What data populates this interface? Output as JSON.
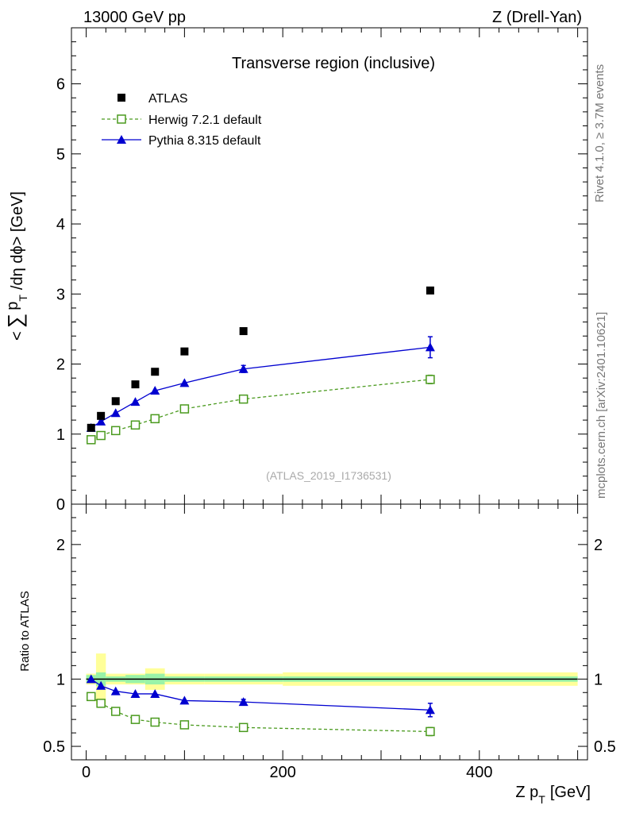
{
  "header": {
    "left": "13000 GeV pp",
    "right": "Z (Drell-Yan)"
  },
  "side_labels": {
    "rivet": "Rivet 4.1.0, ≥ 3.7M events",
    "mcplots": "mcplots.cern.ch [arXiv:2401.10621]"
  },
  "chart_data": [
    {
      "type": "scatter",
      "title": "Transverse region (inclusive)",
      "watermark": "(ATLAS_2019_I1736531)",
      "ylabel": "<∑ p_T /dη dϕ> [GeV]",
      "ylabel_parts": {
        "open": "<",
        "sum": "∑",
        "p": "p",
        "sub": "T",
        "rest": "/dη dϕ> [GeV]"
      },
      "xlim": [
        -15,
        510
      ],
      "ylim": [
        0,
        6.8
      ],
      "yticks": [
        "0",
        "1",
        "2",
        "3",
        "4",
        "5",
        "6"
      ],
      "x": [
        5,
        15,
        30,
        50,
        70,
        100,
        160,
        350
      ],
      "series": [
        {
          "name": "ATLAS",
          "marker": "filled-square",
          "line": "none",
          "color": "#000000",
          "values": [
            1.09,
            1.26,
            1.47,
            1.71,
            1.89,
            2.18,
            2.47,
            3.05
          ]
        },
        {
          "name": "Herwig 7.2.1 default",
          "marker": "open-square",
          "line": "dashed",
          "color": "#4a9a1e",
          "values": [
            0.92,
            0.98,
            1.05,
            1.13,
            1.22,
            1.36,
            1.5,
            1.78
          ],
          "errors": [
            0,
            0,
            0,
            0,
            0,
            0,
            0,
            0.06
          ]
        },
        {
          "name": "Pythia 8.315 default",
          "marker": "filled-triangle",
          "line": "solid",
          "color": "#0000d0",
          "values": [
            1.09,
            1.18,
            1.3,
            1.46,
            1.62,
            1.73,
            1.93,
            2.24
          ],
          "errors": [
            0,
            0,
            0,
            0,
            0,
            0,
            0.05,
            0.15
          ]
        }
      ]
    },
    {
      "type": "scatter",
      "ylabel": "Ratio to ATLAS",
      "xlabel": "Z p_T [GeV]",
      "xlabel_parts": {
        "main": "Z p",
        "sub": "T",
        "unit": "[GeV]"
      },
      "xlim": [
        -15,
        510
      ],
      "ylim": [
        0.4,
        2.3
      ],
      "yticks": [
        "0.5",
        "1",
        "2"
      ],
      "xticks": [
        "0",
        "200",
        "400"
      ],
      "x": [
        5,
        15,
        30,
        50,
        70,
        100,
        160,
        350
      ],
      "band_edges": [
        0,
        10,
        20,
        40,
        60,
        80,
        120,
        200,
        500
      ],
      "band_green": [
        0.03,
        0.05,
        0.02,
        0.03,
        0.04,
        0.02,
        0.02,
        0.02
      ],
      "band_yellow": [
        0.04,
        0.19,
        0.04,
        0.04,
        0.08,
        0.04,
        0.04,
        0.05
      ],
      "series": [
        {
          "name": "Herwig 7.2.1 default",
          "marker": "open-square",
          "line": "dashed",
          "color": "#4a9a1e",
          "values": [
            0.87,
            0.82,
            0.76,
            0.7,
            0.68,
            0.66,
            0.64,
            0.61
          ],
          "errors": [
            0,
            0,
            0,
            0,
            0,
            0,
            0,
            0.03
          ]
        },
        {
          "name": "Pythia 8.315 default",
          "marker": "filled-triangle",
          "line": "solid",
          "color": "#0000d0",
          "values": [
            1.0,
            0.95,
            0.91,
            0.89,
            0.89,
            0.84,
            0.83,
            0.77
          ],
          "errors": [
            0,
            0,
            0,
            0,
            0,
            0,
            0.02,
            0.05
          ]
        }
      ]
    }
  ]
}
